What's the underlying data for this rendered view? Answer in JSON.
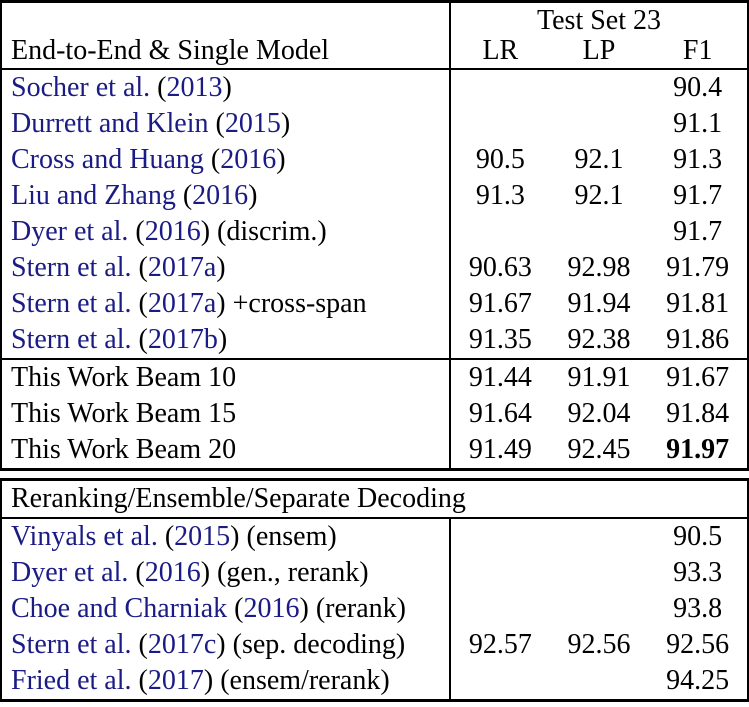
{
  "table": {
    "header": {
      "group_label": "Test Set 23",
      "row_label": "End-to-End & Single Model",
      "columns": [
        "LR",
        "LP",
        "F1"
      ]
    },
    "colors": {
      "citation_link": "#1b1b85",
      "text": "#000000",
      "border": "#000000",
      "background": "#ffffff"
    },
    "sections": {
      "single_model": {
        "rows": [
          {
            "cite": "Socher et al.",
            "year": "2013",
            "suffix": "",
            "lr": "",
            "lp": "",
            "f1": "90.4",
            "f1_bold": false
          },
          {
            "cite": "Durrett and Klein",
            "year": "2015",
            "suffix": "",
            "lr": "",
            "lp": "",
            "f1": "91.1",
            "f1_bold": false
          },
          {
            "cite": "Cross and Huang",
            "year": "2016",
            "suffix": "",
            "lr": "90.5",
            "lp": "92.1",
            "f1": "91.3",
            "f1_bold": false
          },
          {
            "cite": "Liu and Zhang",
            "year": "2016",
            "suffix": "",
            "lr": "91.3",
            "lp": "92.1",
            "f1": "91.7",
            "f1_bold": false
          },
          {
            "cite": "Dyer et al.",
            "year": "2016",
            "suffix": "(discrim.)",
            "lr": "",
            "lp": "",
            "f1": "91.7",
            "f1_bold": false
          },
          {
            "cite": "Stern et al.",
            "year": "2017a",
            "suffix": "",
            "lr": "90.63",
            "lp": "92.98",
            "f1": "91.79",
            "f1_bold": false
          },
          {
            "cite": "Stern et al.",
            "year": "2017a",
            "suffix": "+cross-span",
            "lr": "91.67",
            "lp": "91.94",
            "f1": "91.81",
            "f1_bold": false
          },
          {
            "cite": "Stern et al.",
            "year": "2017b",
            "suffix": "",
            "lr": "91.35",
            "lp": "92.38",
            "f1": "91.86",
            "f1_bold": false
          }
        ]
      },
      "this_work": {
        "rows": [
          {
            "label": "This Work Beam 10",
            "lr": "91.44",
            "lp": "91.91",
            "f1": "91.67",
            "f1_bold": false
          },
          {
            "label": "This Work Beam 15",
            "lr": "91.64",
            "lp": "92.04",
            "f1": "91.84",
            "f1_bold": false
          },
          {
            "label": "This Work Beam 20",
            "lr": "91.49",
            "lp": "92.45",
            "f1": "91.97",
            "f1_bold": true
          }
        ]
      },
      "reranking": {
        "header": "Reranking/Ensemble/Separate Decoding",
        "rows": [
          {
            "cite": "Vinyals et al.",
            "year": "2015",
            "suffix": "(ensem)",
            "lr": "",
            "lp": "",
            "f1": "90.5",
            "f1_bold": false
          },
          {
            "cite": "Dyer et al.",
            "year": "2016",
            "suffix": "(gen., rerank)",
            "lr": "",
            "lp": "",
            "f1": "93.3",
            "f1_bold": false
          },
          {
            "cite": "Choe and Charniak",
            "year": "2016",
            "suffix": "(rerank)",
            "lr": "",
            "lp": "",
            "f1": "93.8",
            "f1_bold": false
          },
          {
            "cite": "Stern et al.",
            "year": "2017c",
            "suffix": "(sep. decoding)",
            "lr": "92.57",
            "lp": "92.56",
            "f1": "92.56",
            "f1_bold": false
          },
          {
            "cite": "Fried et al.",
            "year": "2017",
            "suffix": "(ensem/rerank)",
            "lr": "",
            "lp": "",
            "f1": "94.25",
            "f1_bold": false
          }
        ]
      }
    }
  }
}
